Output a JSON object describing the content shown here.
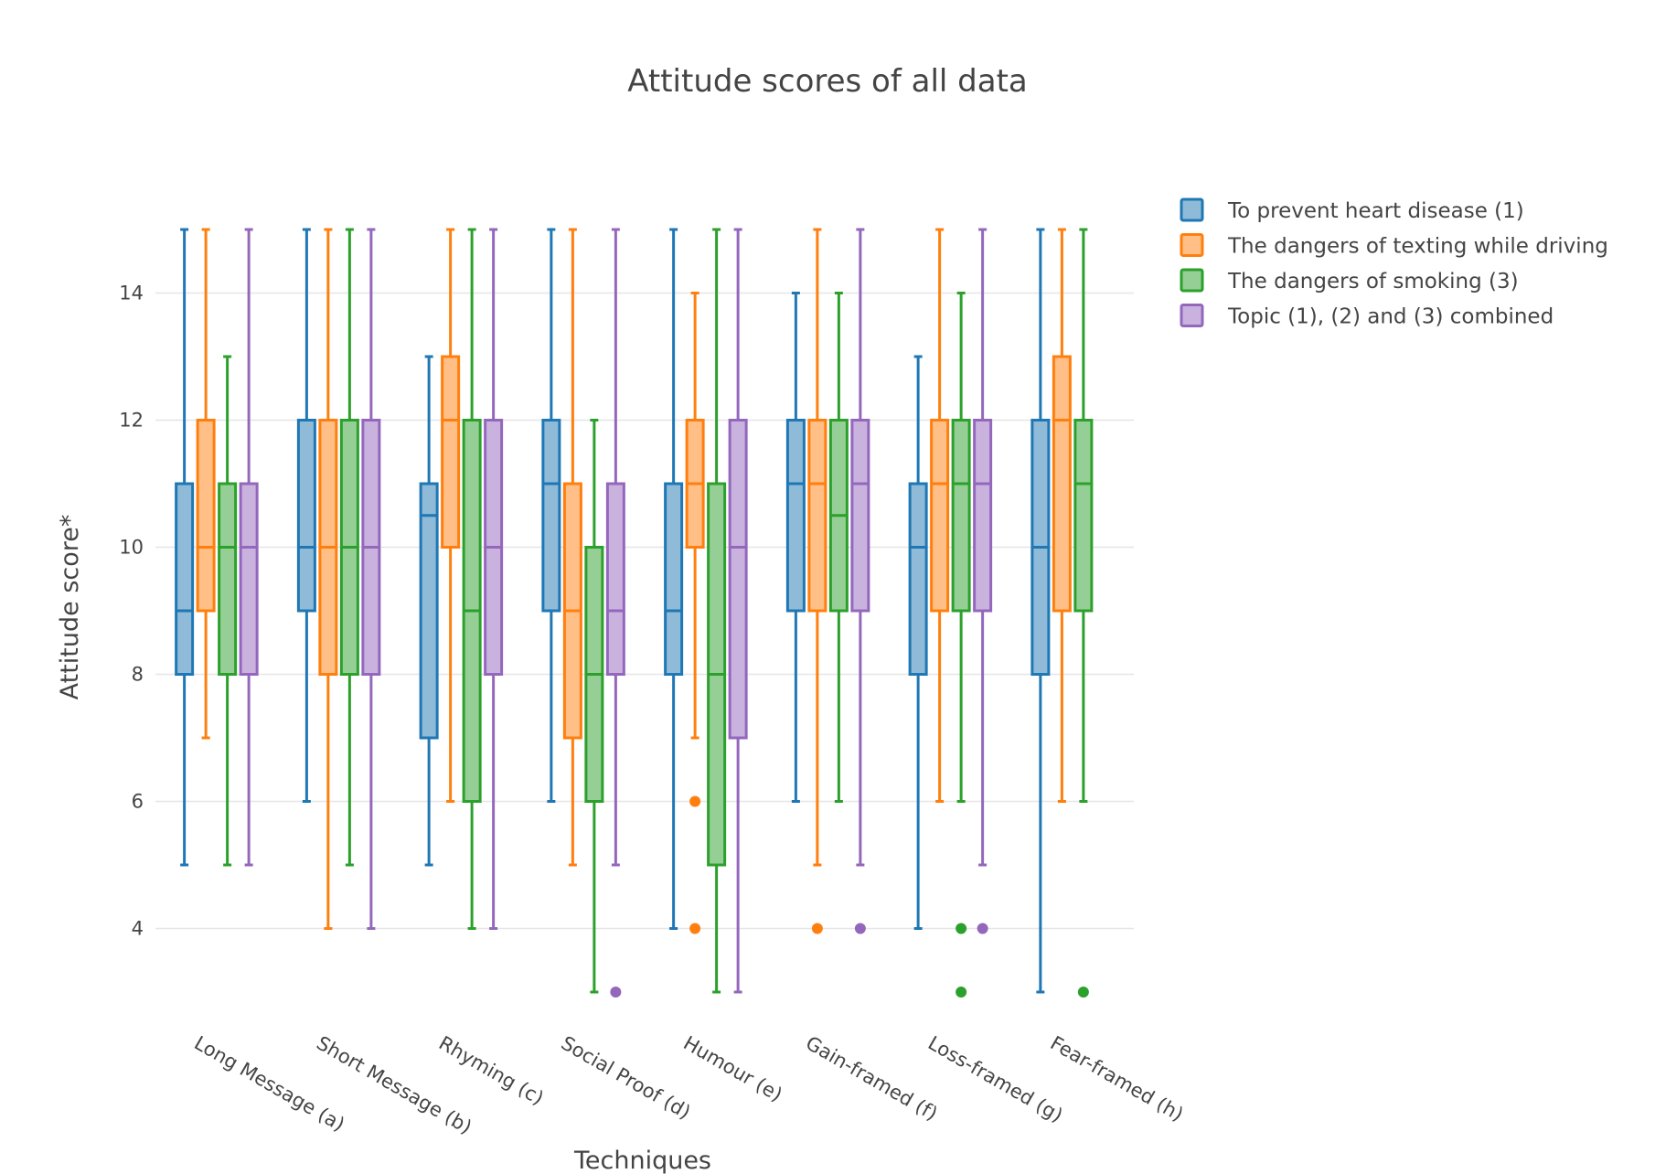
{
  "chart_data": {
    "type": "box",
    "title": "Attitude scores of all data",
    "xlabel": "Techniques",
    "ylabel": "Attitude score*",
    "ylim": [
      2.6,
      15.2
    ],
    "yticks": [
      4,
      6,
      8,
      10,
      12,
      14
    ],
    "grid": true,
    "legend_position": "top-right",
    "categories": [
      "Long Message (a)",
      "Short Message (b)",
      "Rhyming (c)",
      "Social Proof (d)",
      "Humour (e)",
      "Gain-framed (f)",
      "Loss-framed (g)",
      "Fear-framed (h)"
    ],
    "series": [
      {
        "name": "To prevent heart disease (1)",
        "color": "#1f77b4",
        "fill": "#8fbbd9",
        "boxes": [
          {
            "min": 5,
            "q1": 8,
            "median": 9,
            "q3": 11,
            "max": 15,
            "outliers": []
          },
          {
            "min": 6,
            "q1": 9,
            "median": 10,
            "q3": 12,
            "max": 15,
            "outliers": []
          },
          {
            "min": 5,
            "q1": 7,
            "median": 10.5,
            "q3": 11,
            "max": 13,
            "outliers": []
          },
          {
            "min": 6,
            "q1": 9,
            "median": 11,
            "q3": 12,
            "max": 15,
            "outliers": []
          },
          {
            "min": 4,
            "q1": 8,
            "median": 9,
            "q3": 11,
            "max": 15,
            "outliers": []
          },
          {
            "min": 6,
            "q1": 9,
            "median": 11,
            "q3": 12,
            "max": 14,
            "outliers": []
          },
          {
            "min": 4,
            "q1": 8,
            "median": 10,
            "q3": 11,
            "max": 13,
            "outliers": []
          },
          {
            "min": 3,
            "q1": 8,
            "median": 10,
            "q3": 12,
            "max": 15,
            "outliers": []
          }
        ]
      },
      {
        "name": "The dangers of texting while driving",
        "color": "#ff7f0e",
        "fill": "#ffbf86",
        "boxes": [
          {
            "min": 7,
            "q1": 9,
            "median": 10,
            "q3": 12,
            "max": 15,
            "outliers": []
          },
          {
            "min": 4,
            "q1": 8,
            "median": 10,
            "q3": 12,
            "max": 15,
            "outliers": []
          },
          {
            "min": 6,
            "q1": 10,
            "median": 12,
            "q3": 13,
            "max": 15,
            "outliers": []
          },
          {
            "min": 5,
            "q1": 7,
            "median": 9,
            "q3": 11,
            "max": 15,
            "outliers": []
          },
          {
            "min": 7,
            "q1": 10,
            "median": 11,
            "q3": 12,
            "max": 14,
            "outliers": [
              6,
              4
            ]
          },
          {
            "min": 5,
            "q1": 9,
            "median": 11,
            "q3": 12,
            "max": 15,
            "outliers": [
              4
            ]
          },
          {
            "min": 6,
            "q1": 9,
            "median": 11,
            "q3": 12,
            "max": 15,
            "outliers": []
          },
          {
            "min": 6,
            "q1": 9,
            "median": 12,
            "q3": 13,
            "max": 15,
            "outliers": []
          }
        ]
      },
      {
        "name": "The dangers of smoking (3)",
        "color": "#2ca02c",
        "fill": "#95cf95",
        "boxes": [
          {
            "min": 5,
            "q1": 8,
            "median": 10,
            "q3": 11,
            "max": 13,
            "outliers": []
          },
          {
            "min": 5,
            "q1": 8,
            "median": 10,
            "q3": 12,
            "max": 15,
            "outliers": []
          },
          {
            "min": 4,
            "q1": 6,
            "median": 9,
            "q3": 12,
            "max": 15,
            "outliers": []
          },
          {
            "min": 3,
            "q1": 6,
            "median": 8,
            "q3": 10,
            "max": 12,
            "outliers": []
          },
          {
            "min": 3,
            "q1": 5,
            "median": 8,
            "q3": 11,
            "max": 15,
            "outliers": []
          },
          {
            "min": 6,
            "q1": 9,
            "median": 10.5,
            "q3": 12,
            "max": 14,
            "outliers": []
          },
          {
            "min": 6,
            "q1": 9,
            "median": 11,
            "q3": 12,
            "max": 14,
            "outliers": [
              4,
              3
            ]
          },
          {
            "min": 6,
            "q1": 9,
            "median": 11,
            "q3": 12,
            "max": 15,
            "outliers": [
              3
            ]
          }
        ]
      },
      {
        "name": "Topic (1), (2) and (3) combined",
        "color": "#9467bd",
        "fill": "#c9b3de",
        "boxes": [
          {
            "min": 5,
            "q1": 8,
            "median": 10,
            "q3": 11,
            "max": 15,
            "outliers": []
          },
          {
            "min": 4,
            "q1": 8,
            "median": 10,
            "q3": 12,
            "max": 15,
            "outliers": []
          },
          {
            "min": 4,
            "q1": 8,
            "median": 10,
            "q3": 12,
            "max": 15,
            "outliers": []
          },
          {
            "min": 5,
            "q1": 8,
            "median": 9,
            "q3": 11,
            "max": 15,
            "outliers": [
              3
            ]
          },
          {
            "min": 3,
            "q1": 7,
            "median": 10,
            "q3": 12,
            "max": 15,
            "outliers": []
          },
          {
            "min": 5,
            "q1": 9,
            "median": 11,
            "q3": 12,
            "max": 15,
            "outliers": [
              4
            ]
          },
          {
            "min": 5,
            "q1": 9,
            "median": 11,
            "q3": 12,
            "max": 15,
            "outliers": [
              4
            ]
          },
          null
        ]
      }
    ]
  }
}
